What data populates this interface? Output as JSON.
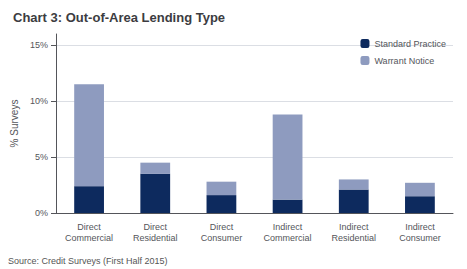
{
  "chart_data": {
    "type": "bar",
    "title": "Chart 3: Out-of-Area Lending Type",
    "ylabel": "% Surveys",
    "source": "Source: Credit Surveys (First Half 2015)",
    "categories": [
      "Direct\nCommercial",
      "Direct\nResidential",
      "Direct\nConsumer",
      "Indirect\nCommercial",
      "Indirect\nResidential",
      "Indirect\nConsumer"
    ],
    "series": [
      {
        "name": "Standard Practice",
        "color": "#0d2a5e",
        "values": [
          2.4,
          3.5,
          1.6,
          1.2,
          2.1,
          1.5
        ]
      },
      {
        "name": "Warrant Notice",
        "color": "#8e9bbf",
        "values": [
          9.1,
          1.0,
          1.2,
          7.6,
          0.9,
          1.2
        ]
      }
    ],
    "stacked": true,
    "ylim": [
      0,
      16
    ],
    "yticks": [
      {
        "value": 0,
        "label": "0%"
      },
      {
        "value": 5,
        "label": "5%"
      },
      {
        "value": 10,
        "label": "10%"
      },
      {
        "value": 15,
        "label": "15%"
      }
    ],
    "grid": true,
    "legend": "upper right"
  }
}
